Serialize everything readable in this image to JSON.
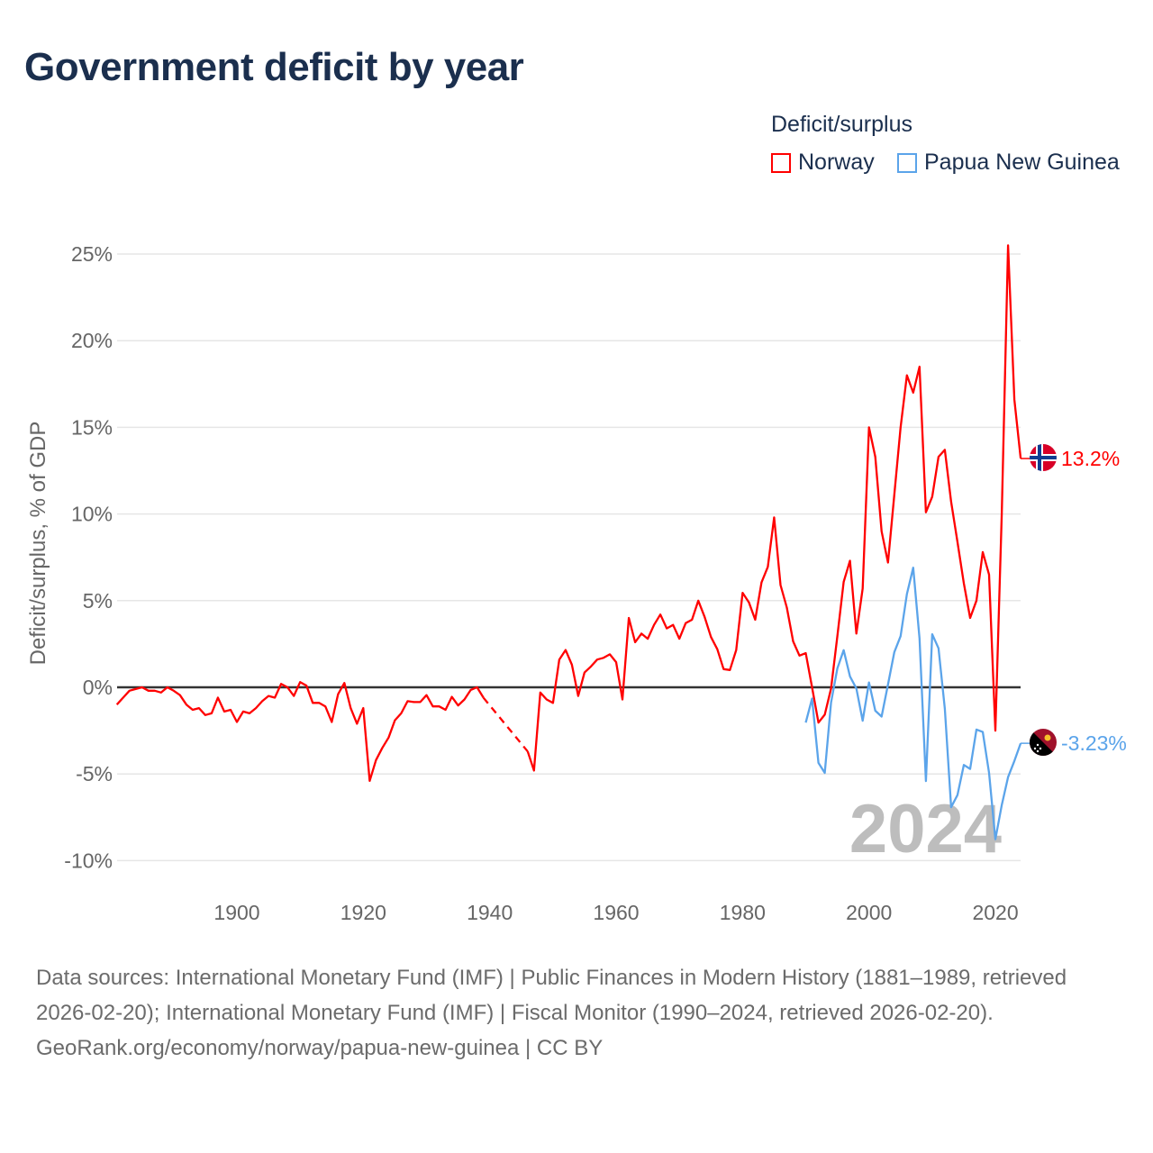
{
  "title": "Government deficit by year",
  "legend": {
    "title": "Deficit/surplus",
    "items": [
      {
        "label": "Norway",
        "color": "#ff0000"
      },
      {
        "label": "Papua New Guinea",
        "color": "#5ba4ea"
      }
    ]
  },
  "chart_data": {
    "type": "line",
    "title": "Government deficit by year",
    "xlabel": "",
    "ylabel": "Deficit/surplus, % of GDP",
    "xlim": [
      1881,
      2024
    ],
    "ylim": [
      -11,
      26
    ],
    "xticks": [
      1900,
      1920,
      1940,
      1960,
      1980,
      2000,
      2020
    ],
    "yticks": [
      {
        "v": 25,
        "label": "25%"
      },
      {
        "v": 20,
        "label": "20%"
      },
      {
        "v": 15,
        "label": "15%"
      },
      {
        "v": 10,
        "label": "10%"
      },
      {
        "v": 5,
        "label": "5%"
      },
      {
        "v": 0,
        "label": "0%"
      },
      {
        "v": -5,
        "label": "-5%"
      },
      {
        "v": -10,
        "label": "-10%"
      }
    ],
    "grid": true,
    "legend_position": "top-right",
    "year_watermark": "2024",
    "series": [
      {
        "name": "Norway",
        "color": "#ff0000",
        "end_label": "13.2%",
        "start_year": 1881,
        "values": [
          -1.0,
          -0.6,
          -0.2,
          -0.1,
          0.0,
          -0.2,
          -0.2,
          -0.3,
          0.0,
          -0.2,
          -0.45,
          -1.0,
          -1.3,
          -1.2,
          -1.6,
          -1.5,
          -0.6,
          -1.4,
          -1.3,
          -2.0,
          -1.4,
          -1.5,
          -1.2,
          -0.8,
          -0.5,
          -0.6,
          0.2,
          0.0,
          -0.5,
          0.3,
          0.1,
          -0.9,
          -0.9,
          -1.1,
          -2.0,
          -0.4,
          0.25,
          -1.2,
          -2.1,
          -1.2,
          -5.4,
          -4.2,
          -3.5,
          -2.9,
          -1.9,
          -1.5,
          -0.8,
          -0.85,
          -0.85,
          -0.45,
          -1.1,
          -1.1,
          -1.3,
          -0.55,
          -1.05,
          -0.7,
          -0.15,
          0.0,
          -0.6,
          null,
          null,
          null,
          null,
          null,
          null,
          -3.7,
          -4.8,
          -0.3,
          -0.7,
          -0.9,
          1.6,
          2.15,
          1.3,
          -0.5,
          0.85,
          1.2,
          1.6,
          1.7,
          1.9,
          1.45,
          -0.7,
          4.0,
          2.6,
          3.1,
          2.8,
          3.6,
          4.2,
          3.4,
          3.6,
          2.8,
          3.7,
          3.9,
          5.0,
          4.05,
          2.9,
          2.2,
          1.05,
          1.0,
          2.15,
          5.45,
          4.9,
          3.9,
          6.05,
          6.95,
          9.8,
          5.9,
          4.6,
          2.65,
          1.83,
          1.97,
          0.0,
          -2.04,
          -1.58,
          -0.07,
          2.95,
          6.08,
          7.3,
          3.1,
          5.7,
          15.0,
          13.3,
          9.0,
          7.2,
          11.1,
          15.0,
          18.0,
          17.0,
          18.5,
          10.1,
          11.0,
          13.3,
          13.7,
          10.7,
          8.4,
          6.0,
          4.0,
          5.0,
          7.8,
          6.5,
          -2.5,
          10.0,
          25.5,
          16.6,
          13.2
        ]
      },
      {
        "name": "Papua New Guinea",
        "color": "#5ba4ea",
        "end_label": "-3.23%",
        "start_year": 1990,
        "values": [
          -2.04,
          -0.65,
          -4.36,
          -4.94,
          -0.88,
          1.09,
          2.14,
          0.63,
          -0.07,
          -1.93,
          0.28,
          -1.35,
          -1.69,
          0.16,
          2.02,
          2.95,
          5.38,
          6.9,
          2.83,
          -5.41,
          3.06,
          2.25,
          -1.23,
          -6.92,
          -6.22,
          -4.48,
          -4.71,
          -2.44,
          -2.58,
          -4.94,
          -8.77,
          -6.8,
          -5.18,
          -4.25,
          -3.23
        ]
      }
    ]
  },
  "footer": {
    "sources": "Data sources: International Monetary Fund (IMF) | Public Finances in Modern History (1881–1989, retrieved 2026-02-20); International Monetary Fund (IMF) | Fiscal Monitor (1990–2024, retrieved 2026-02-20).",
    "credit": "GeoRank.org/economy/norway/papua-new-guinea | CC BY"
  }
}
